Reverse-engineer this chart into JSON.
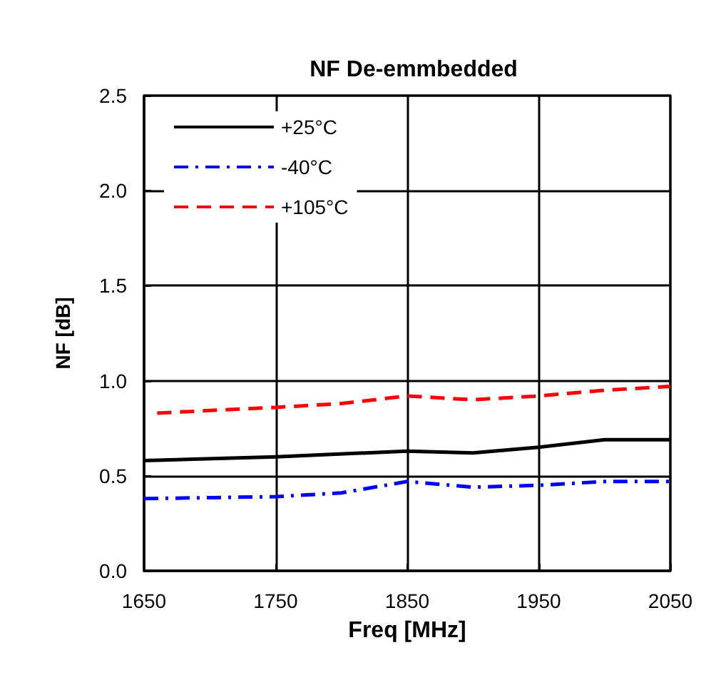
{
  "chart_data": {
    "type": "line",
    "title": "NF De-emmbedded",
    "xlabel": "Freq [MHz]",
    "ylabel": "NF [dB]",
    "xlim": [
      1650,
      2050
    ],
    "xticks": [
      1650,
      1750,
      1850,
      1950,
      2050
    ],
    "ylim": [
      0,
      2.5
    ],
    "yticks": [
      {
        "value": 0,
        "label": "0.0"
      },
      0.5,
      {
        "value": 1,
        "label": "1.0"
      },
      1.5,
      {
        "value": 2,
        "label": "2.0"
      },
      2.5
    ],
    "grid": true,
    "legend": "top left",
    "marker": "none",
    "series": [
      {
        "name": "+25°C",
        "color": "#000000",
        "line_style": "solid",
        "x": [
          1650,
          1750,
          1850,
          1900,
          1950,
          2000,
          2050
        ],
        "values": [
          0.58,
          0.6,
          0.63,
          0.62,
          0.65,
          0.69,
          0.69
        ]
      },
      {
        "name": "-40°C",
        "color": "#0000ff",
        "line_style": "dashdot",
        "x": [
          1650,
          1750,
          1800,
          1850,
          1900,
          1950,
          2000,
          2050
        ],
        "values": [
          0.38,
          0.39,
          0.41,
          0.47,
          0.44,
          0.45,
          0.47,
          0.47
        ]
      },
      {
        "name": "+105°C",
        "color": "#ff0000",
        "line_style": "dashed",
        "x": [
          1660,
          1750,
          1800,
          1850,
          1900,
          1950,
          2000,
          2050
        ],
        "values": [
          0.83,
          0.86,
          0.88,
          0.92,
          0.9,
          0.92,
          0.95,
          0.97
        ]
      }
    ]
  }
}
